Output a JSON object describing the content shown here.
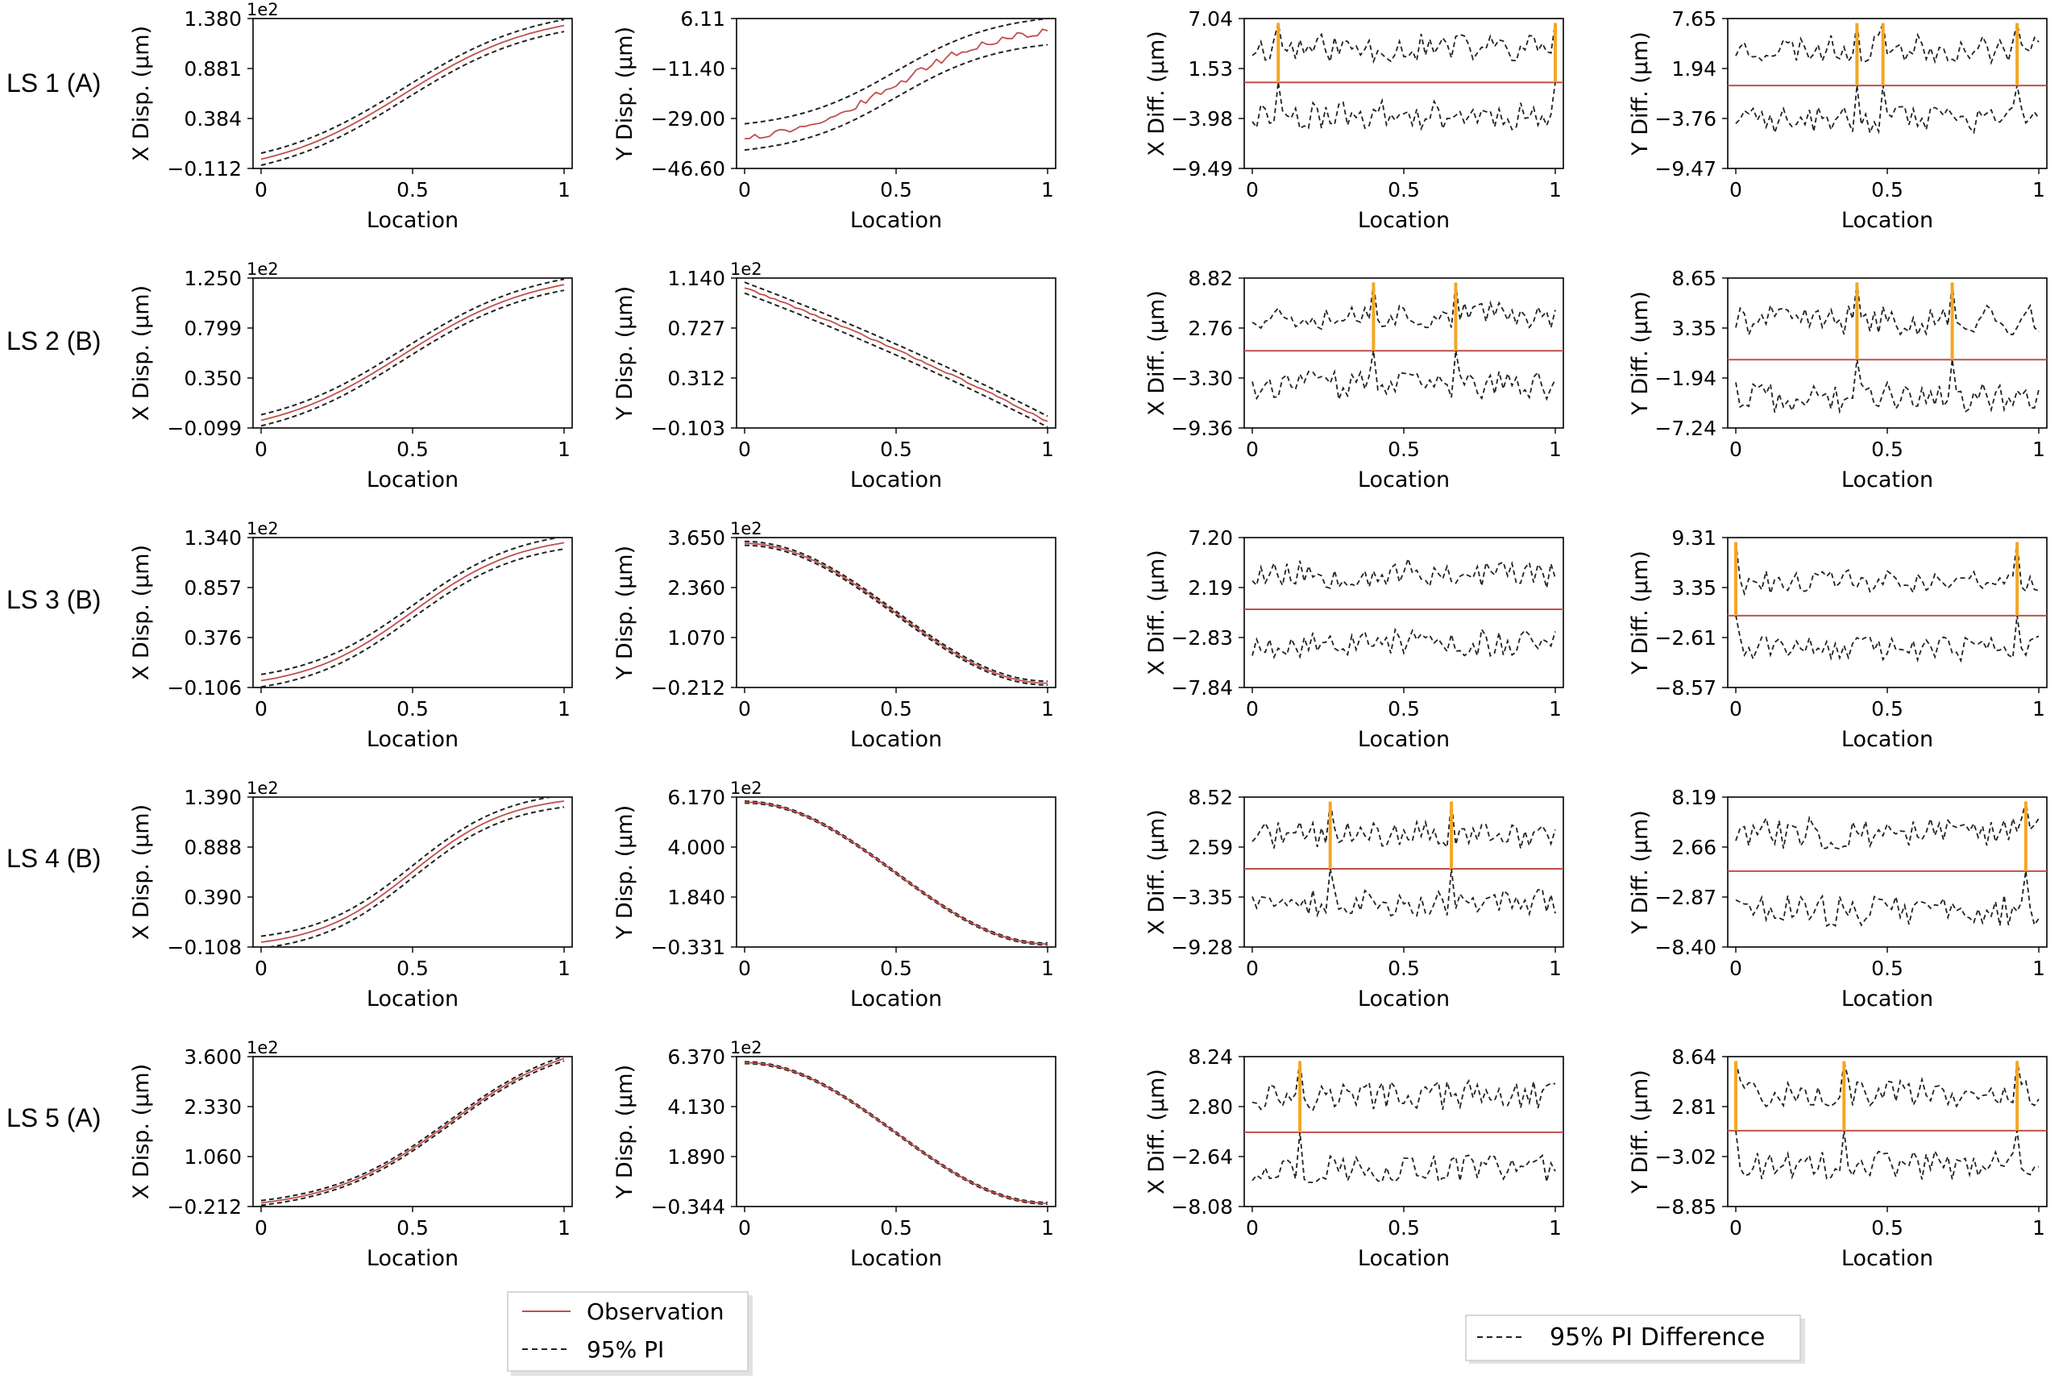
{
  "figure": {
    "rows": [
      "LS 1 (A)",
      "LS 2 (B)",
      "LS 3 (B)",
      "LS 4 (B)",
      "LS 5 (A)"
    ],
    "legend_left": {
      "entries": [
        "Observation",
        "95% PI"
      ]
    },
    "legend_right": {
      "entries": [
        "95% PI Difference"
      ]
    },
    "colors": {
      "observation": "#c0504d",
      "pi": "#222222",
      "violation": "#f5a623",
      "zero_line": "#c0504d"
    }
  },
  "chart_data": [
    {
      "type": "line",
      "row": 0,
      "col": 0,
      "xlabel": "Location",
      "ylabel": "X Disp. (μm)",
      "multiplier": "1e2",
      "yticks": [
        "1.380",
        "0.881",
        "0.384",
        "−0.112"
      ],
      "xticks": [
        "0",
        "0.5",
        "1"
      ],
      "ylim": [
        -0.112,
        1.38
      ],
      "xlim": [
        0,
        1
      ],
      "curve": {
        "kind": "sigmoid",
        "start": -0.02,
        "end": 1.31,
        "center": 0.47,
        "steepness": 0.22,
        "band": 0.06,
        "noise": 0
      },
      "series": [
        {
          "name": "Observation"
        },
        {
          "name": "95% PI"
        }
      ]
    },
    {
      "type": "line",
      "row": 0,
      "col": 1,
      "xlabel": "Location",
      "ylabel": "Y Disp. (μm)",
      "yticks": [
        "6.11",
        "−11.40",
        "−29.00",
        "−46.60"
      ],
      "xticks": [
        "0",
        "0.5",
        "1"
      ],
      "ylim": [
        -46.6,
        6.11
      ],
      "xlim": [
        0,
        1
      ],
      "curve": {
        "kind": "sigmoid",
        "start": -35.5,
        "end": 1.5,
        "center": 0.5,
        "steepness": 0.17,
        "band": 4.6,
        "noise": 1.2
      },
      "series": [
        {
          "name": "Observation"
        },
        {
          "name": "95% PI"
        }
      ]
    },
    {
      "type": "line",
      "row": 0,
      "col": 2,
      "xlabel": "Location",
      "ylabel": "X Diff. (μm)",
      "yticks": [
        "7.04",
        "1.53",
        "−3.98",
        "−9.49"
      ],
      "xticks": [
        "0",
        "0.5",
        "1"
      ],
      "ylim": [
        -9.49,
        7.04
      ],
      "xlim": [
        0,
        1
      ],
      "diff": {
        "upper_mean": 3.8,
        "lower_mean": -3.6,
        "amplitude": 1.6,
        "seed": 11,
        "spikes": [
          0.09,
          1.0
        ]
      },
      "series": [
        {
          "name": "95% PI Difference"
        }
      ]
    },
    {
      "type": "line",
      "row": 0,
      "col": 3,
      "xlabel": "Location",
      "ylabel": "Y Diff. (μm)",
      "yticks": [
        "7.65",
        "1.94",
        "−3.76",
        "−9.47"
      ],
      "xticks": [
        "0",
        "0.5",
        "1"
      ],
      "ylim": [
        -9.47,
        7.65
      ],
      "xlim": [
        0,
        1
      ],
      "diff": {
        "upper_mean": 4.2,
        "lower_mean": -3.9,
        "amplitude": 1.6,
        "seed": 23,
        "spikes": [
          0.4,
          0.49,
          0.93
        ]
      },
      "series": [
        {
          "name": "95% PI Difference"
        }
      ]
    },
    {
      "type": "line",
      "row": 1,
      "col": 0,
      "xlabel": "Location",
      "ylabel": "X Disp. (μm)",
      "multiplier": "1e2",
      "yticks": [
        "1.250",
        "0.799",
        "0.350",
        "−0.099"
      ],
      "xticks": [
        "0",
        "0.5",
        "1"
      ],
      "ylim": [
        -0.099,
        1.25
      ],
      "xlim": [
        0,
        1
      ],
      "curve": {
        "kind": "sigmoid",
        "start": -0.03,
        "end": 1.19,
        "center": 0.47,
        "steepness": 0.22,
        "band": 0.05,
        "noise": 0
      },
      "series": [
        {
          "name": "Observation"
        },
        {
          "name": "95% PI"
        }
      ]
    },
    {
      "type": "line",
      "row": 1,
      "col": 1,
      "xlabel": "Location",
      "ylabel": "Y Disp. (μm)",
      "multiplier": "1e2",
      "yticks": [
        "1.140",
        "0.727",
        "0.312",
        "−0.103"
      ],
      "xticks": [
        "0",
        "0.5",
        "1"
      ],
      "ylim": [
        -0.103,
        1.14
      ],
      "xlim": [
        0,
        1
      ],
      "curve": {
        "kind": "decay",
        "start": 1.06,
        "end": -0.05,
        "center": 0.3,
        "steepness": 0.3,
        "band": 0.045,
        "noise": 0.006
      },
      "series": [
        {
          "name": "Observation"
        },
        {
          "name": "95% PI"
        }
      ]
    },
    {
      "type": "line",
      "row": 1,
      "col": 2,
      "xlabel": "Location",
      "ylabel": "X Diff. (μm)",
      "yticks": [
        "8.82",
        "2.76",
        "−3.30",
        "−9.36"
      ],
      "xticks": [
        "0",
        "0.5",
        "1"
      ],
      "ylim": [
        -9.36,
        8.82
      ],
      "xlim": [
        0,
        1
      ],
      "diff": {
        "upper_mean": 4.3,
        "lower_mean": -4.2,
        "amplitude": 1.7,
        "seed": 37,
        "spikes": [
          0.4,
          0.67
        ]
      },
      "series": [
        {
          "name": "95% PI Difference"
        }
      ]
    },
    {
      "type": "line",
      "row": 1,
      "col": 3,
      "xlabel": "Location",
      "ylabel": "Y Diff. (μm)",
      "yticks": [
        "8.65",
        "3.35",
        "−1.94",
        "−7.24"
      ],
      "xticks": [
        "0",
        "0.5",
        "1"
      ],
      "ylim": [
        -7.24,
        8.65
      ],
      "xlim": [
        0,
        1
      ],
      "diff": {
        "upper_mean": 4.2,
        "lower_mean": -4.0,
        "amplitude": 1.6,
        "seed": 41,
        "spikes": [
          0.4,
          0.71
        ]
      },
      "series": [
        {
          "name": "95% PI Difference"
        }
      ]
    },
    {
      "type": "line",
      "row": 2,
      "col": 0,
      "xlabel": "Location",
      "ylabel": "X Disp. (μm)",
      "multiplier": "1e2",
      "yticks": [
        "1.340",
        "0.857",
        "0.376",
        "−0.106"
      ],
      "xticks": [
        "0",
        "0.5",
        "1"
      ],
      "ylim": [
        -0.106,
        1.34
      ],
      "xlim": [
        0,
        1
      ],
      "curve": {
        "kind": "sigmoid",
        "start": -0.04,
        "end": 1.29,
        "center": 0.5,
        "steepness": 0.18,
        "band": 0.06,
        "noise": 0
      },
      "series": [
        {
          "name": "Observation"
        },
        {
          "name": "95% PI"
        }
      ]
    },
    {
      "type": "line",
      "row": 2,
      "col": 1,
      "xlabel": "Location",
      "ylabel": "Y Disp. (μm)",
      "multiplier": "1e2",
      "yticks": [
        "3.650",
        "2.360",
        "1.070",
        "−0.212"
      ],
      "xticks": [
        "0",
        "0.5",
        "1"
      ],
      "ylim": [
        -0.212,
        3.65
      ],
      "xlim": [
        0,
        1
      ],
      "curve": {
        "kind": "cos",
        "start": 3.5,
        "end": -0.1,
        "band": 0.05,
        "noise": 0
      },
      "series": [
        {
          "name": "Observation"
        },
        {
          "name": "95% PI"
        }
      ]
    },
    {
      "type": "line",
      "row": 2,
      "col": 2,
      "xlabel": "Location",
      "ylabel": "X Diff. (μm)",
      "yticks": [
        "7.20",
        "2.19",
        "−2.83",
        "−7.84"
      ],
      "xticks": [
        "0",
        "0.5",
        "1"
      ],
      "ylim": [
        -7.84,
        7.2
      ],
      "xlim": [
        0,
        1
      ],
      "diff": {
        "upper_mean": 3.6,
        "lower_mean": -3.4,
        "amplitude": 1.5,
        "seed": 53,
        "spikes": []
      },
      "series": [
        {
          "name": "95% PI Difference"
        }
      ]
    },
    {
      "type": "line",
      "row": 2,
      "col": 3,
      "xlabel": "Location",
      "ylabel": "Y Diff. (μm)",
      "yticks": [
        "9.31",
        "3.35",
        "−2.61",
        "−8.57"
      ],
      "xticks": [
        "0",
        "0.5",
        "1"
      ],
      "ylim": [
        -8.57,
        9.31
      ],
      "xlim": [
        0,
        1
      ],
      "diff": {
        "upper_mean": 4.0,
        "lower_mean": -3.9,
        "amplitude": 1.5,
        "seed": 61,
        "spikes": [
          0.0,
          0.93
        ]
      },
      "series": [
        {
          "name": "95% PI Difference"
        }
      ]
    },
    {
      "type": "line",
      "row": 3,
      "col": 0,
      "xlabel": "Location",
      "ylabel": "X Disp. (μm)",
      "multiplier": "1e2",
      "yticks": [
        "1.390",
        "0.888",
        "0.390",
        "−0.108"
      ],
      "xticks": [
        "0",
        "0.5",
        "1"
      ],
      "ylim": [
        -0.108,
        1.39
      ],
      "xlim": [
        0,
        1
      ],
      "curve": {
        "kind": "sigmoid",
        "start": -0.06,
        "end": 1.35,
        "center": 0.5,
        "steepness": 0.16,
        "band": 0.06,
        "noise": 0
      },
      "series": [
        {
          "name": "Observation"
        },
        {
          "name": "95% PI"
        }
      ]
    },
    {
      "type": "line",
      "row": 3,
      "col": 1,
      "xlabel": "Location",
      "ylabel": "Y Disp. (μm)",
      "multiplier": "1e2",
      "yticks": [
        "6.170",
        "4.000",
        "1.840",
        "−0.331"
      ],
      "xticks": [
        "0",
        "0.5",
        "1"
      ],
      "ylim": [
        -0.331,
        6.17
      ],
      "xlim": [
        0,
        1
      ],
      "curve": {
        "kind": "cos",
        "start": 5.95,
        "end": -0.2,
        "band": 0.04,
        "noise": 0
      },
      "series": [
        {
          "name": "Observation"
        },
        {
          "name": "95% PI"
        }
      ]
    },
    {
      "type": "line",
      "row": 3,
      "col": 2,
      "xlabel": "Location",
      "ylabel": "X Diff. (μm)",
      "yticks": [
        "8.52",
        "2.59",
        "−3.35",
        "−9.28"
      ],
      "xticks": [
        "0",
        "0.5",
        "1"
      ],
      "ylim": [
        -9.28,
        8.52
      ],
      "xlim": [
        0,
        1
      ],
      "diff": {
        "upper_mean": 4.0,
        "lower_mean": -4.0,
        "amplitude": 1.6,
        "seed": 71,
        "spikes": [
          0.26,
          0.65
        ]
      },
      "series": [
        {
          "name": "95% PI Difference"
        }
      ]
    },
    {
      "type": "line",
      "row": 3,
      "col": 3,
      "xlabel": "Location",
      "ylabel": "Y Diff. (μm)",
      "yticks": [
        "8.19",
        "2.66",
        "−2.87",
        "−8.40"
      ],
      "xticks": [
        "0",
        "0.5",
        "1"
      ],
      "ylim": [
        -8.4,
        8.19
      ],
      "xlim": [
        0,
        1
      ],
      "diff": {
        "upper_mean": 4.2,
        "lower_mean": -4.3,
        "amplitude": 1.8,
        "seed": 83,
        "spikes": [
          0.96
        ]
      },
      "series": [
        {
          "name": "95% PI Difference"
        }
      ]
    },
    {
      "type": "line",
      "row": 4,
      "col": 0,
      "xlabel": "Location",
      "ylabel": "X Disp. (μm)",
      "multiplier": "1e2",
      "yticks": [
        "3.600",
        "2.330",
        "1.060",
        "−0.212"
      ],
      "xticks": [
        "0",
        "0.5",
        "1"
      ],
      "ylim": [
        -0.212,
        3.6
      ],
      "xlim": [
        0,
        1
      ],
      "curve": {
        "kind": "sigmoid",
        "start": -0.12,
        "end": 3.55,
        "center": 0.62,
        "steepness": 0.2,
        "band": 0.06,
        "noise": 0
      },
      "series": [
        {
          "name": "Observation"
        },
        {
          "name": "95% PI"
        }
      ]
    },
    {
      "type": "line",
      "row": 4,
      "col": 1,
      "xlabel": "Location",
      "ylabel": "Y Disp. (μm)",
      "multiplier": "1e2",
      "yticks": [
        "6.370",
        "4.130",
        "1.890",
        "−0.344"
      ],
      "xticks": [
        "0",
        "0.5",
        "1"
      ],
      "ylim": [
        -0.344,
        6.37
      ],
      "xlim": [
        0,
        1
      ],
      "curve": {
        "kind": "cos",
        "start": 6.1,
        "end": -0.2,
        "band": 0.04,
        "noise": 0
      },
      "series": [
        {
          "name": "Observation"
        },
        {
          "name": "95% PI"
        }
      ]
    },
    {
      "type": "line",
      "row": 4,
      "col": 2,
      "xlabel": "Location",
      "ylabel": "X Diff. (μm)",
      "yticks": [
        "8.24",
        "2.80",
        "−2.64",
        "−8.08"
      ],
      "xticks": [
        "0",
        "0.5",
        "1"
      ],
      "ylim": [
        -8.08,
        8.24
      ],
      "xlim": [
        0,
        1
      ],
      "diff": {
        "upper_mean": 4.0,
        "lower_mean": -3.9,
        "amplitude": 1.6,
        "seed": 97,
        "spikes": [
          0.16
        ]
      },
      "series": [
        {
          "name": "95% PI Difference"
        }
      ]
    },
    {
      "type": "line",
      "row": 4,
      "col": 3,
      "xlabel": "Location",
      "ylabel": "Y Diff. (μm)",
      "yticks": [
        "8.64",
        "2.81",
        "−3.02",
        "−8.85"
      ],
      "xticks": [
        "0",
        "0.5",
        "1"
      ],
      "ylim": [
        -8.85,
        8.64
      ],
      "xlim": [
        0,
        1
      ],
      "diff": {
        "upper_mean": 4.3,
        "lower_mean": -4.0,
        "amplitude": 1.7,
        "seed": 101,
        "spikes": [
          0.0,
          0.35,
          0.93
        ]
      },
      "series": [
        {
          "name": "95% PI Difference"
        }
      ]
    }
  ]
}
